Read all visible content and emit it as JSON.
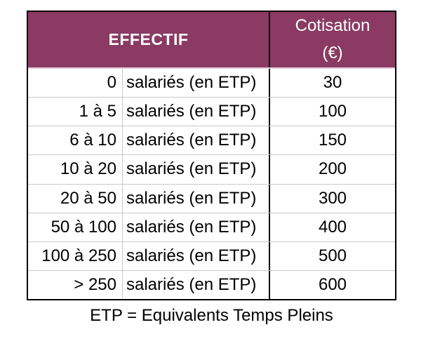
{
  "table": {
    "header": {
      "effectif": "EFFECTIF",
      "cotisation_line1": "Cotisation",
      "cotisation_line2": "(€)"
    },
    "rows": [
      {
        "range": "0",
        "unit": "salariés (en ETP)",
        "cotisation": "30"
      },
      {
        "range": "1 à 5",
        "unit": "salariés (en ETP)",
        "cotisation": "100"
      },
      {
        "range": "6 à 10",
        "unit": "salariés (en ETP)",
        "cotisation": "150"
      },
      {
        "range": "10 à 20",
        "unit": "salariés (en ETP)",
        "cotisation": "200"
      },
      {
        "range": "20 à 50",
        "unit": "salariés (en ETP)",
        "cotisation": "300"
      },
      {
        "range": "50 à 100",
        "unit": "salariés (en ETP)",
        "cotisation": "400"
      },
      {
        "range": "100 à 250",
        "unit": "salariés (en ETP)",
        "cotisation": "500"
      },
      {
        "range": "> 250",
        "unit": "salariés (en ETP)",
        "cotisation": "600"
      }
    ],
    "footnote": "ETP = Equivalents Temps Pleins"
  },
  "colors": {
    "header_bg": "#8A3A63",
    "header_text": "#ffffff",
    "border_black": "#000000",
    "separator_gray": "#c8c8c8",
    "body_text": "#000000"
  }
}
